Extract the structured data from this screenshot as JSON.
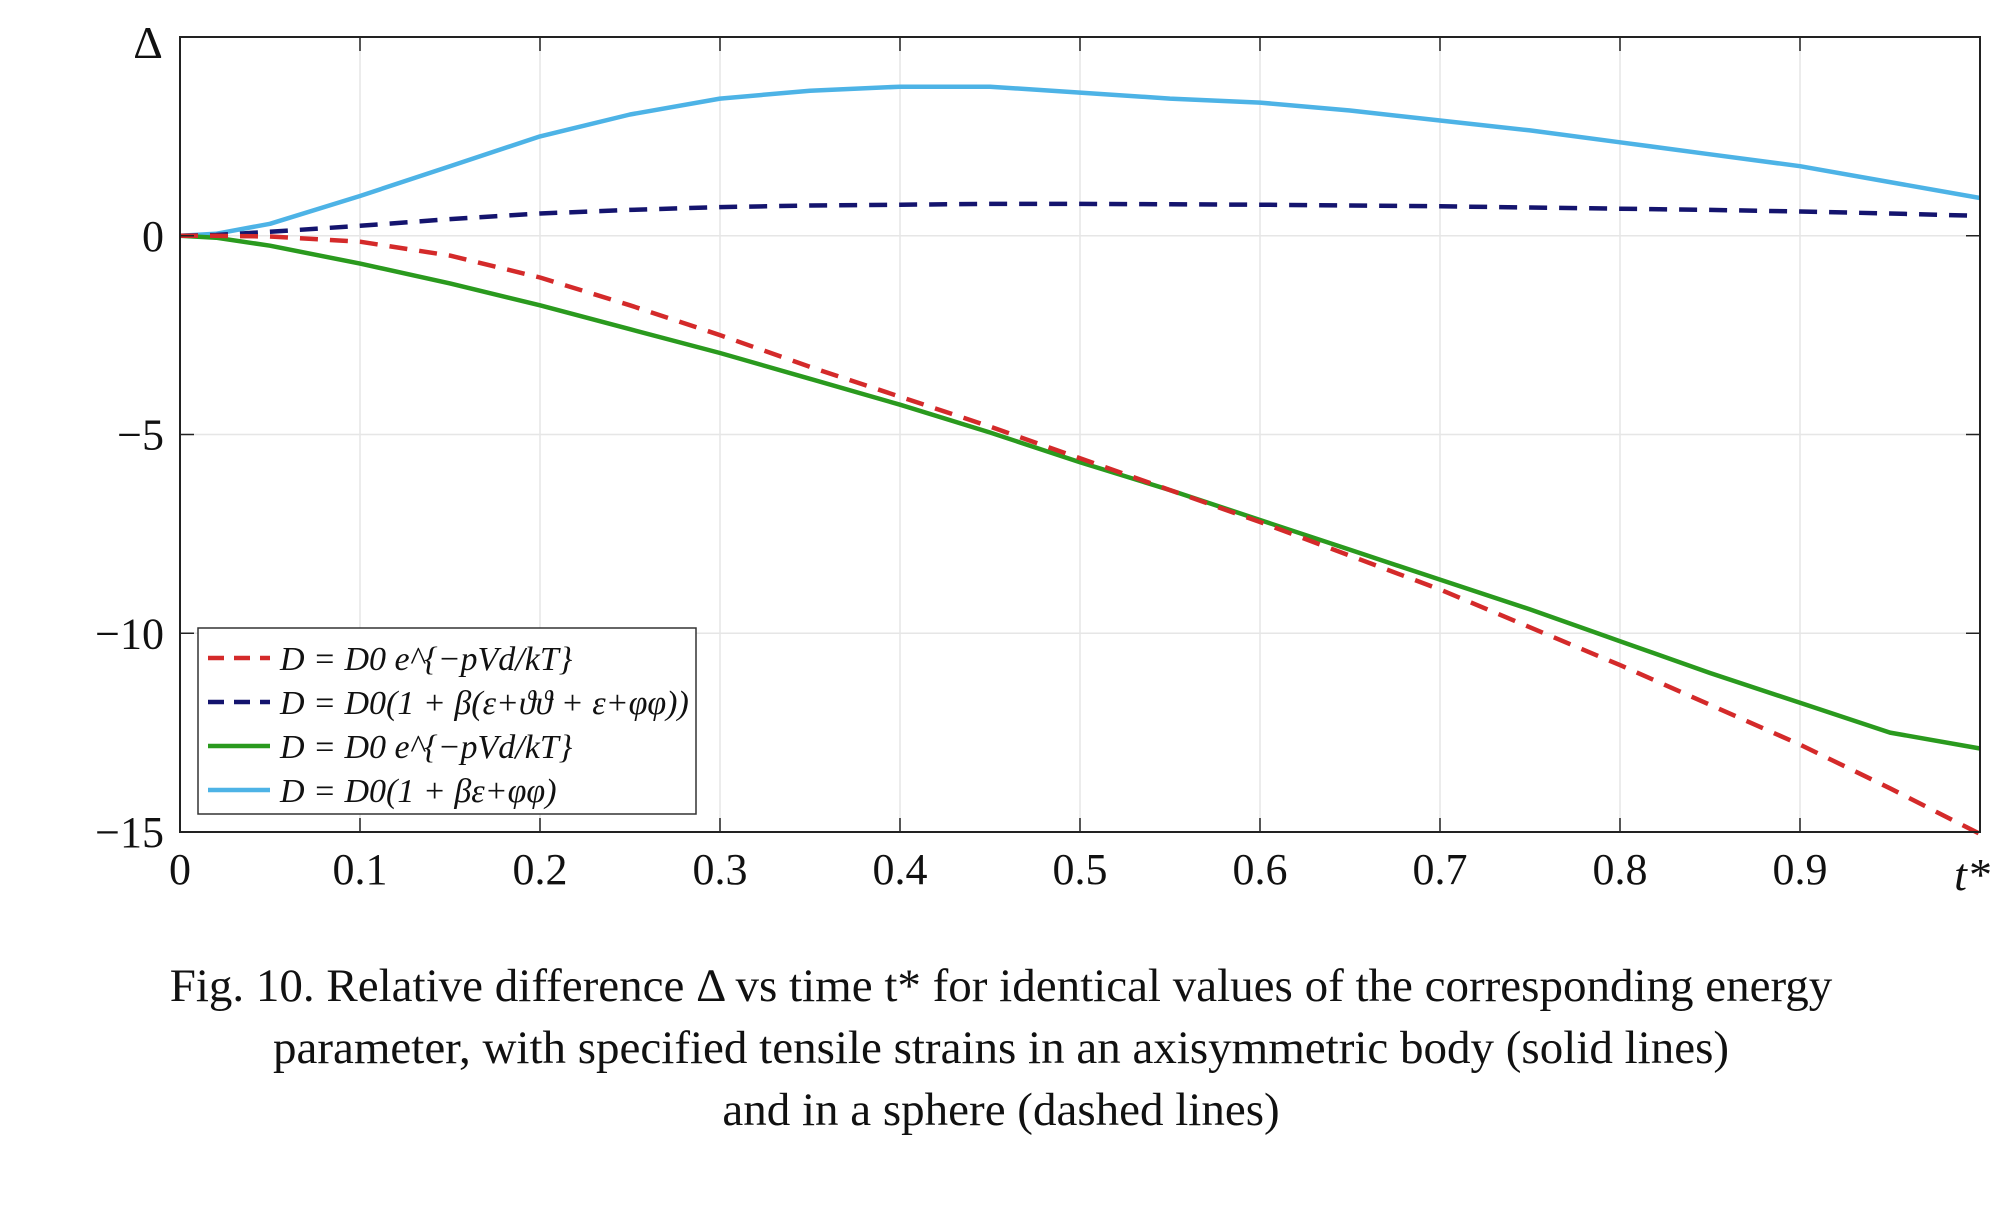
{
  "chart_data": {
    "type": "line",
    "ylabel": "Δ",
    "xlabel": "t*",
    "xlim": [
      0,
      1
    ],
    "ylim": [
      -15,
      5
    ],
    "x_ticks": [
      "0",
      "0.1",
      "0.2",
      "0.3",
      "0.4",
      "0.5",
      "0.6",
      "0.7",
      "0.8",
      "0.9"
    ],
    "y_ticks": [
      "0",
      "−5",
      "−10",
      "−15"
    ],
    "grid": true,
    "legend_position": "lower-left",
    "x": [
      0,
      0.02,
      0.05,
      0.1,
      0.15,
      0.2,
      0.25,
      0.3,
      0.35,
      0.4,
      0.45,
      0.5,
      0.55,
      0.6,
      0.65,
      0.7,
      0.75,
      0.8,
      0.85,
      0.9,
      0.95,
      1.0
    ],
    "series": [
      {
        "name": "D = D0 e^{−pVd/kT}",
        "style": "dashed",
        "color": "#d42a2a",
        "values": [
          0,
          0,
          -0.02,
          -0.15,
          -0.5,
          -1.05,
          -1.75,
          -2.5,
          -3.3,
          -4.05,
          -4.8,
          -5.6,
          -6.4,
          -7.2,
          -8.05,
          -8.9,
          -9.85,
          -10.8,
          -11.8,
          -12.8,
          -13.9,
          -15.05
        ]
      },
      {
        "name": "D = D0(1 + β(ε+ϑϑ + ε+φφ))",
        "style": "dashed",
        "color": "#14146e",
        "values": [
          0,
          0.02,
          0.1,
          0.25,
          0.42,
          0.56,
          0.65,
          0.72,
          0.76,
          0.78,
          0.8,
          0.8,
          0.79,
          0.78,
          0.76,
          0.74,
          0.71,
          0.68,
          0.65,
          0.61,
          0.56,
          0.5
        ]
      },
      {
        "name": "D = D0 e^{−pVd/kT}",
        "style": "solid",
        "color": "#2a9a1e",
        "values": [
          0,
          -0.05,
          -0.25,
          -0.7,
          -1.2,
          -1.75,
          -2.35,
          -2.95,
          -3.6,
          -4.25,
          -4.95,
          -5.7,
          -6.4,
          -7.15,
          -7.9,
          -8.65,
          -9.4,
          -10.2,
          -11.0,
          -11.75,
          -12.5,
          -12.9
        ]
      },
      {
        "name": "D = D0(1 + βε+φφ)",
        "style": "solid",
        "color": "#4db3e6",
        "values": [
          0,
          0.05,
          0.3,
          1.0,
          1.75,
          2.5,
          3.05,
          3.45,
          3.65,
          3.75,
          3.75,
          3.6,
          3.45,
          3.35,
          3.15,
          2.9,
          2.65,
          2.35,
          2.05,
          1.75,
          1.35,
          0.95
        ]
      }
    ]
  },
  "caption": {
    "line1": "Fig. 10. Relative difference Δ vs time t* for identical values of the corresponding energy",
    "line2": "parameter, with specified tensile strains in an axisymmetric body (solid lines)",
    "line3": "and in a sphere (dashed lines)"
  }
}
